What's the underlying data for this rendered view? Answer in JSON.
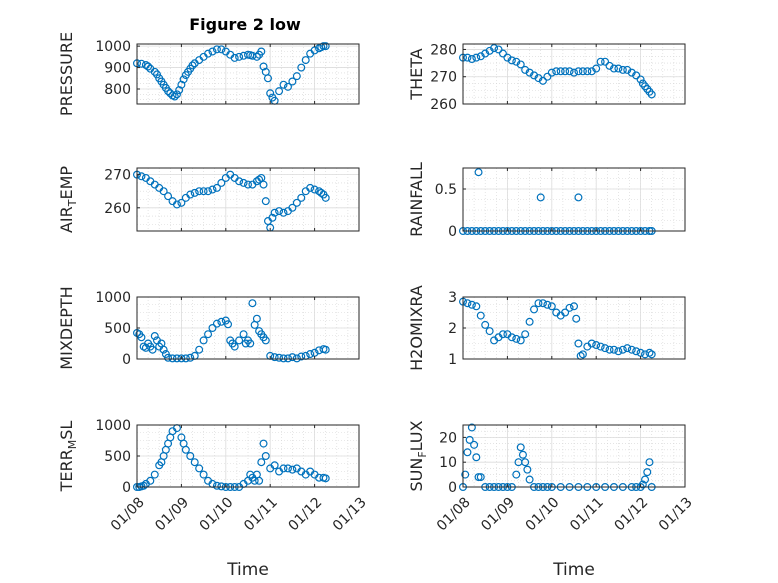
{
  "figure_title": "Figure 2 low",
  "marker_color": "#0072BD",
  "chart_data": [
    {
      "type": "scatter",
      "ylabel": "PRESSURE",
      "xlabel": "",
      "x_unit": "day of January",
      "xlim": [
        8,
        13
      ],
      "ylim": [
        730,
        1010
      ],
      "yticks": [
        800,
        900,
        1000
      ],
      "x": [
        8.0,
        8.1,
        8.2,
        8.25,
        8.3,
        8.4,
        8.45,
        8.5,
        8.55,
        8.6,
        8.65,
        8.7,
        8.75,
        8.8,
        8.85,
        8.9,
        8.95,
        9.0,
        9.05,
        9.1,
        9.15,
        9.2,
        9.25,
        9.3,
        9.4,
        9.5,
        9.6,
        9.7,
        9.8,
        9.9,
        10.0,
        10.1,
        10.2,
        10.3,
        10.4,
        10.5,
        10.55,
        10.6,
        10.7,
        10.75,
        10.8,
        10.85,
        10.9,
        10.95,
        11.0,
        11.05,
        11.1,
        11.2,
        11.3,
        11.4,
        11.5,
        11.6,
        11.7,
        11.8,
        11.9,
        12.0,
        12.1,
        12.15,
        12.2,
        12.25
      ],
      "y": [
        920,
        918,
        912,
        905,
        895,
        880,
        868,
        850,
        835,
        820,
        805,
        790,
        780,
        770,
        765,
        775,
        795,
        820,
        845,
        865,
        880,
        895,
        910,
        920,
        935,
        950,
        965,
        975,
        985,
        985,
        975,
        960,
        945,
        950,
        955,
        960,
        958,
        955,
        950,
        960,
        975,
        905,
        880,
        850,
        780,
        760,
        745,
        790,
        820,
        810,
        835,
        860,
        900,
        935,
        965,
        980,
        990,
        995,
        1000,
        1000
      ]
    },
    {
      "type": "scatter",
      "ylabel": "THETA",
      "xlabel": "",
      "xlim": [
        8,
        13
      ],
      "ylim": [
        260,
        282
      ],
      "yticks": [
        260,
        270,
        280
      ],
      "x": [
        8.0,
        8.1,
        8.2,
        8.3,
        8.4,
        8.5,
        8.6,
        8.7,
        8.8,
        8.9,
        9.0,
        9.1,
        9.2,
        9.3,
        9.4,
        9.5,
        9.6,
        9.7,
        9.8,
        9.9,
        10.0,
        10.1,
        10.2,
        10.3,
        10.4,
        10.5,
        10.6,
        10.7,
        10.8,
        10.9,
        11.0,
        11.1,
        11.2,
        11.3,
        11.4,
        11.5,
        11.6,
        11.7,
        11.8,
        11.9,
        12.0,
        12.05,
        12.1,
        12.15,
        12.2,
        12.25
      ],
      "y": [
        277,
        277,
        276.5,
        277,
        277.5,
        278.5,
        279.5,
        280.5,
        280,
        278.5,
        277,
        276,
        275.5,
        274.5,
        272.5,
        271.5,
        270.5,
        269.5,
        268.5,
        270,
        271.5,
        272,
        272,
        272,
        272,
        271.5,
        272,
        272,
        272,
        272,
        273,
        275.5,
        275.5,
        274,
        273,
        273,
        272.5,
        272.5,
        271.5,
        270.5,
        269,
        267.5,
        266.5,
        265.5,
        264.5,
        263.5
      ]
    },
    {
      "type": "scatter",
      "ylabel": "AIR_TEMP",
      "xlabel": "",
      "xlim": [
        8,
        13
      ],
      "ylim": [
        253,
        272
      ],
      "yticks": [
        260,
        270
      ],
      "x": [
        8.0,
        8.1,
        8.2,
        8.3,
        8.4,
        8.5,
        8.6,
        8.7,
        8.8,
        8.9,
        9.0,
        9.1,
        9.2,
        9.3,
        9.4,
        9.5,
        9.6,
        9.7,
        9.8,
        9.9,
        10.0,
        10.1,
        10.2,
        10.3,
        10.4,
        10.5,
        10.6,
        10.7,
        10.75,
        10.8,
        10.85,
        10.9,
        10.95,
        11.0,
        11.05,
        11.1,
        11.2,
        11.3,
        11.4,
        11.5,
        11.6,
        11.7,
        11.8,
        11.9,
        12.0,
        12.1,
        12.15,
        12.2,
        12.25
      ],
      "y": [
        270,
        269.5,
        269,
        268,
        267,
        266,
        265,
        263.5,
        262,
        261,
        261.5,
        263,
        264,
        264.5,
        265,
        265,
        265,
        265.5,
        266,
        267.5,
        269,
        270,
        269,
        268,
        267.5,
        267,
        267,
        268,
        268.5,
        269,
        267,
        262,
        256,
        254,
        257,
        258.5,
        259,
        258.5,
        259,
        260,
        261.5,
        263,
        265,
        266,
        265.5,
        265,
        264.5,
        264,
        263
      ]
    },
    {
      "type": "scatter",
      "ylabel": "RAINFALL",
      "xlabel": "",
      "xlim": [
        8,
        13
      ],
      "ylim": [
        0,
        0.75
      ],
      "yticks": [
        0,
        0.5
      ],
      "x": [
        8.0,
        8.1,
        8.2,
        8.3,
        8.35,
        8.4,
        8.5,
        8.6,
        8.7,
        8.8,
        8.9,
        9.0,
        9.1,
        9.2,
        9.3,
        9.4,
        9.5,
        9.6,
        9.7,
        9.8,
        9.9,
        10.0,
        10.1,
        10.2,
        10.3,
        10.4,
        10.5,
        10.6,
        10.7,
        10.8,
        10.9,
        11.0,
        11.1,
        11.2,
        11.3,
        11.4,
        11.5,
        11.6,
        11.7,
        11.8,
        11.9,
        12.0,
        12.1,
        12.2,
        12.25
      ],
      "y": [
        0,
        0,
        0,
        0,
        0.7,
        0,
        0,
        0,
        0,
        0,
        0,
        0,
        0,
        0,
        0,
        0,
        0,
        0,
        0,
        0,
        0,
        0,
        0,
        0,
        0,
        0,
        0,
        0,
        0,
        0,
        0,
        0,
        0,
        0,
        0,
        0,
        0,
        0,
        0,
        0,
        0,
        0,
        0,
        0,
        0
      ],
      "extra_points": [
        {
          "x": 9.75,
          "y": 0.4
        },
        {
          "x": 10.6,
          "y": 0.4
        }
      ]
    },
    {
      "type": "scatter",
      "ylabel": "MIXDEPTH",
      "xlabel": "",
      "xlim": [
        8,
        13
      ],
      "ylim": [
        0,
        1000
      ],
      "yticks": [
        0,
        500,
        1000
      ],
      "x": [
        8.0,
        8.05,
        8.1,
        8.15,
        8.2,
        8.25,
        8.3,
        8.35,
        8.4,
        8.45,
        8.5,
        8.55,
        8.6,
        8.65,
        8.7,
        8.8,
        8.9,
        9.0,
        9.1,
        9.2,
        9.3,
        9.4,
        9.5,
        9.6,
        9.7,
        9.8,
        9.9,
        10.0,
        10.05,
        10.1,
        10.15,
        10.2,
        10.3,
        10.4,
        10.45,
        10.5,
        10.55,
        10.6,
        10.65,
        10.7,
        10.75,
        10.8,
        10.85,
        10.9,
        11.0,
        11.1,
        11.2,
        11.3,
        11.4,
        11.5,
        11.6,
        11.7,
        11.8,
        11.9,
        12.0,
        12.1,
        12.2,
        12.25
      ],
      "y": [
        420,
        400,
        350,
        200,
        180,
        250,
        200,
        150,
        370,
        300,
        200,
        250,
        150,
        80,
        20,
        10,
        10,
        10,
        10,
        20,
        50,
        150,
        300,
        400,
        500,
        570,
        600,
        620,
        560,
        300,
        250,
        200,
        300,
        400,
        250,
        300,
        250,
        900,
        550,
        650,
        450,
        400,
        350,
        300,
        50,
        30,
        20,
        10,
        10,
        30,
        10,
        40,
        50,
        80,
        100,
        140,
        160,
        150
      ]
    },
    {
      "type": "scatter",
      "ylabel": "H2OMIXRA",
      "xlabel": "",
      "xlim": [
        8,
        13
      ],
      "ylim": [
        1,
        3
      ],
      "yticks": [
        1,
        2,
        3
      ],
      "x": [
        8.0,
        8.1,
        8.2,
        8.3,
        8.4,
        8.5,
        8.6,
        8.7,
        8.8,
        8.9,
        9.0,
        9.1,
        9.2,
        9.3,
        9.4,
        9.5,
        9.6,
        9.7,
        9.8,
        9.9,
        10.0,
        10.1,
        10.2,
        10.3,
        10.4,
        10.5,
        10.55,
        10.6,
        10.65,
        10.7,
        10.8,
        10.9,
        11.0,
        11.1,
        11.2,
        11.3,
        11.4,
        11.5,
        11.6,
        11.7,
        11.8,
        11.9,
        12.0,
        12.1,
        12.2,
        12.25
      ],
      "y": [
        2.85,
        2.8,
        2.75,
        2.7,
        2.4,
        2.1,
        1.9,
        1.6,
        1.7,
        1.8,
        1.8,
        1.7,
        1.65,
        1.6,
        1.8,
        2.2,
        2.6,
        2.8,
        2.8,
        2.75,
        2.7,
        2.5,
        2.4,
        2.5,
        2.65,
        2.7,
        2.3,
        1.5,
        1.1,
        1.15,
        1.4,
        1.5,
        1.45,
        1.4,
        1.35,
        1.3,
        1.3,
        1.25,
        1.3,
        1.35,
        1.3,
        1.25,
        1.2,
        1.15,
        1.2,
        1.15
      ]
    },
    {
      "type": "scatter",
      "ylabel": "TERR_MSL",
      "xlabel": "Time",
      "xlim": [
        8,
        13
      ],
      "ylim": [
        0,
        1000
      ],
      "yticks": [
        0,
        500,
        1000
      ],
      "xticks": [
        "01/08",
        "01/09",
        "01/10",
        "01/11",
        "01/12",
        "01/13"
      ],
      "x": [
        8.0,
        8.05,
        8.1,
        8.15,
        8.2,
        8.3,
        8.4,
        8.5,
        8.55,
        8.6,
        8.65,
        8.7,
        8.75,
        8.8,
        8.9,
        9.0,
        9.05,
        9.1,
        9.2,
        9.3,
        9.4,
        9.5,
        9.6,
        9.7,
        9.8,
        9.9,
        10.0,
        10.1,
        10.2,
        10.3,
        10.4,
        10.5,
        10.55,
        10.6,
        10.65,
        10.7,
        10.75,
        10.8,
        10.85,
        10.9,
        11.0,
        11.1,
        11.2,
        11.3,
        11.4,
        11.5,
        11.6,
        11.7,
        11.8,
        11.9,
        12.0,
        12.1,
        12.2,
        12.25
      ],
      "y": [
        0,
        0,
        10,
        20,
        50,
        100,
        200,
        350,
        400,
        500,
        600,
        700,
        800,
        900,
        950,
        800,
        700,
        600,
        500,
        400,
        300,
        200,
        100,
        50,
        20,
        10,
        0,
        0,
        0,
        0,
        50,
        100,
        200,
        150,
        100,
        200,
        100,
        400,
        700,
        500,
        300,
        350,
        250,
        300,
        300,
        280,
        300,
        250,
        200,
        250,
        200,
        150,
        150,
        140
      ]
    },
    {
      "type": "scatter",
      "ylabel": "SUN_FLUX",
      "xlabel": "Time",
      "xlim": [
        8,
        13
      ],
      "ylim": [
        0,
        25
      ],
      "yticks": [
        0,
        10,
        20
      ],
      "xticks": [
        "01/08",
        "01/09",
        "01/10",
        "01/11",
        "01/12",
        "01/13"
      ],
      "x": [
        8.0,
        8.05,
        8.1,
        8.15,
        8.2,
        8.25,
        8.3,
        8.35,
        8.4,
        8.5,
        8.6,
        8.7,
        8.8,
        8.9,
        9.0,
        9.1,
        9.2,
        9.25,
        9.3,
        9.35,
        9.4,
        9.45,
        9.5,
        9.6,
        9.7,
        9.8,
        9.9,
        10.0,
        10.2,
        10.4,
        10.6,
        10.8,
        11.0,
        11.2,
        11.4,
        11.6,
        11.8,
        11.9,
        12.0,
        12.05,
        12.1,
        12.15,
        12.2,
        12.25
      ],
      "y": [
        0,
        5,
        14,
        19,
        24,
        17,
        12,
        4,
        4,
        0,
        0,
        0,
        0,
        0,
        0,
        0,
        5,
        10,
        16,
        13,
        10,
        7,
        3,
        0,
        0,
        0,
        0,
        0,
        0,
        0,
        0,
        0,
        0,
        0,
        0,
        0,
        0,
        0,
        0,
        1,
        3,
        6,
        10,
        0
      ]
    }
  ]
}
